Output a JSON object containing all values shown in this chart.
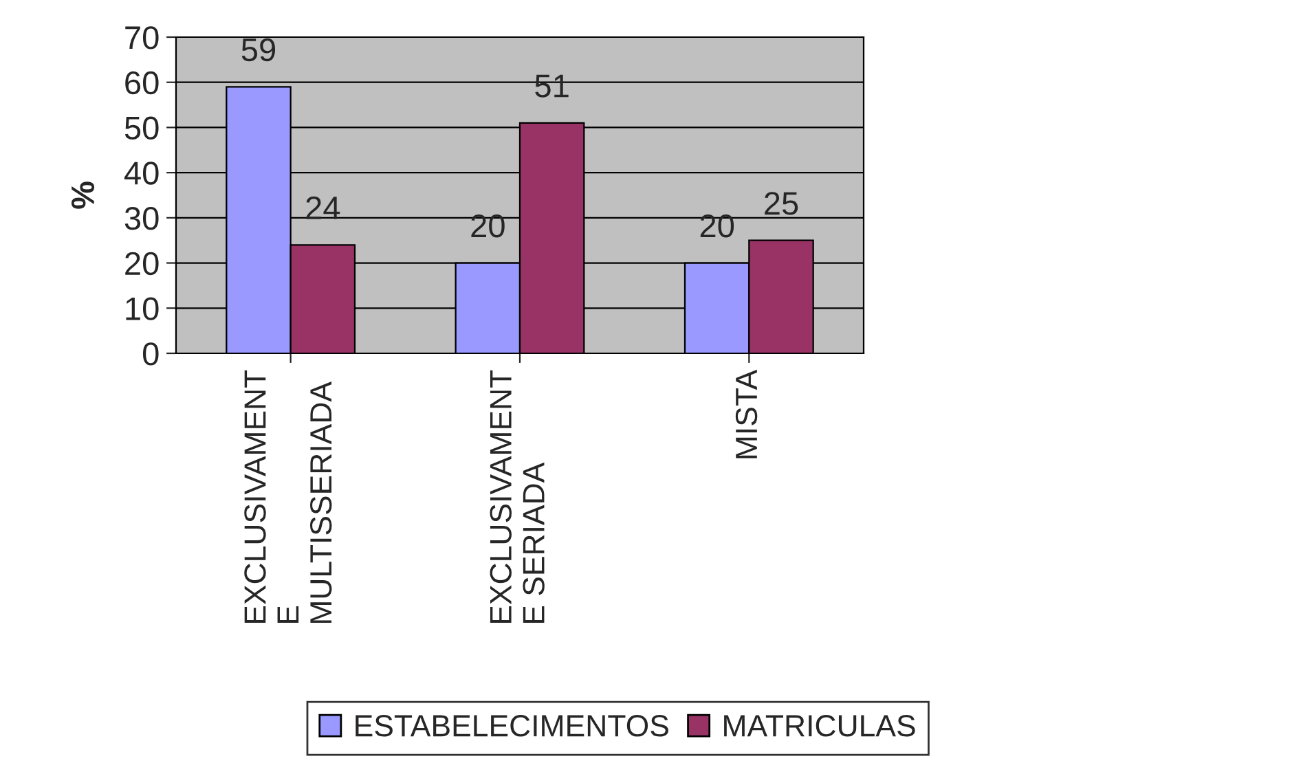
{
  "chart_data": {
    "type": "bar",
    "ylabel": "%",
    "categories": [
      "EXCLUSIVAMENT\nE\nMULTISSERIADA",
      "EXCLUSIVAMENT\nE SERIADA",
      "MISTA"
    ],
    "series": [
      {
        "name": "ESTABELECIMENTOS",
        "color": "#9999ff",
        "values": [
          59,
          20,
          20
        ]
      },
      {
        "name": "MATRICULAS",
        "color": "#993366",
        "values": [
          24,
          51,
          25
        ]
      }
    ],
    "ylim": [
      0,
      70
    ],
    "yticks": [
      0,
      10,
      20,
      30,
      40,
      50,
      60,
      70
    ],
    "grid": "y",
    "legend": "bottom",
    "data_labels": true
  }
}
